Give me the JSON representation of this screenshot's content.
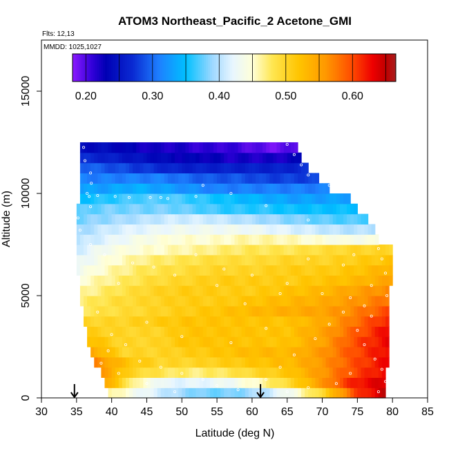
{
  "chart_data": {
    "type": "heatmap",
    "title": "ATOM3 Northeast_Pacific_2 Acetone_GMI",
    "flights_label": "Flts: 12,13",
    "dates_label": "MMDD: 1025,1027",
    "xlabel": "Latitude (deg N)",
    "ylabel": "Altitude (m)",
    "xlim": [
      30,
      85
    ],
    "ylim": [
      0,
      17500
    ],
    "x_ticks": [
      "30",
      "35",
      "40",
      "45",
      "50",
      "55",
      "60",
      "65",
      "70",
      "75",
      "80",
      "85"
    ],
    "y_ticks": [
      "0",
      "5000",
      "10000",
      "15000"
    ],
    "colorbar": {
      "range": [
        0.18,
        0.665
      ],
      "tick_values": [
        0.2,
        0.3,
        0.4,
        0.5,
        0.6
      ],
      "tick_labels": [
        "0.20",
        "0.30",
        "0.40",
        "0.50",
        "0.60"
      ],
      "boundaries": [
        0.18,
        0.2,
        0.25,
        0.3,
        0.35,
        0.4,
        0.45,
        0.5,
        0.55,
        0.6,
        0.65,
        0.665
      ],
      "color_stops": [
        {
          "v": 0.18,
          "c": "#8c1aff"
        },
        {
          "v": 0.21,
          "c": "#3000d8"
        },
        {
          "v": 0.23,
          "c": "#0000b4"
        },
        {
          "v": 0.27,
          "c": "#0a2ad2"
        },
        {
          "v": 0.31,
          "c": "#1e80ff"
        },
        {
          "v": 0.35,
          "c": "#00c0ff"
        },
        {
          "v": 0.39,
          "c": "#9ed8ff"
        },
        {
          "v": 0.42,
          "c": "#e8f6ff"
        },
        {
          "v": 0.45,
          "c": "#ffffd8"
        },
        {
          "v": 0.48,
          "c": "#ffe650"
        },
        {
          "v": 0.52,
          "c": "#ffc400"
        },
        {
          "v": 0.56,
          "c": "#ff9800"
        },
        {
          "v": 0.6,
          "c": "#ff4a00"
        },
        {
          "v": 0.63,
          "c": "#ee0000"
        },
        {
          "v": 0.65,
          "c": "#c00000"
        },
        {
          "v": 0.665,
          "c": "#a81e1e"
        }
      ]
    },
    "rows": [
      {
        "alt": 250,
        "x0": 39.5,
        "x1": 79.0,
        "edge": [
          0.47,
          0.43,
          0.4,
          0.38,
          0.38,
          0.4,
          0.44,
          0.5,
          0.6,
          0.65
        ]
      },
      {
        "alt": 750,
        "x0": 39.0,
        "x1": 79.0,
        "edge": [
          0.55,
          0.46,
          0.42,
          0.42,
          0.43,
          0.46,
          0.5,
          0.56,
          0.62,
          0.64
        ]
      },
      {
        "alt": 1250,
        "x0": 38.5,
        "x1": 79.0,
        "edge": [
          0.56,
          0.5,
          0.48,
          0.47,
          0.48,
          0.5,
          0.52,
          0.56,
          0.6,
          0.63
        ]
      },
      {
        "alt": 1750,
        "x0": 37.5,
        "x1": 79.5,
        "edge": [
          0.57,
          0.52,
          0.5,
          0.5,
          0.51,
          0.52,
          0.53,
          0.56,
          0.6,
          0.63
        ]
      },
      {
        "alt": 2250,
        "x0": 37.0,
        "x1": 79.5,
        "edge": [
          0.55,
          0.5,
          0.5,
          0.51,
          0.52,
          0.53,
          0.53,
          0.56,
          0.6,
          0.63
        ]
      },
      {
        "alt": 2750,
        "x0": 36.5,
        "x1": 79.5,
        "edge": [
          0.53,
          0.5,
          0.5,
          0.52,
          0.52,
          0.52,
          0.52,
          0.55,
          0.6,
          0.63
        ]
      },
      {
        "alt": 3250,
        "x0": 36.5,
        "x1": 79.5,
        "edge": [
          0.51,
          0.5,
          0.5,
          0.52,
          0.52,
          0.52,
          0.52,
          0.55,
          0.59,
          0.63
        ]
      },
      {
        "alt": 3750,
        "x0": 36.0,
        "x1": 79.5,
        "edge": [
          0.5,
          0.5,
          0.51,
          0.52,
          0.52,
          0.52,
          0.52,
          0.54,
          0.58,
          0.62
        ]
      },
      {
        "alt": 4250,
        "x0": 36.0,
        "x1": 79.5,
        "edge": [
          0.48,
          0.49,
          0.5,
          0.51,
          0.52,
          0.53,
          0.54,
          0.55,
          0.57,
          0.6
        ]
      },
      {
        "alt": 4750,
        "x0": 35.5,
        "x1": 79.5,
        "edge": [
          0.47,
          0.49,
          0.5,
          0.51,
          0.51,
          0.52,
          0.53,
          0.54,
          0.56,
          0.58
        ]
      },
      {
        "alt": 5250,
        "x0": 35.5,
        "x1": 79.5,
        "edge": [
          0.46,
          0.48,
          0.5,
          0.51,
          0.51,
          0.51,
          0.52,
          0.53,
          0.55,
          0.57
        ]
      },
      {
        "alt": 5750,
        "x0": 35.5,
        "x1": 80.0,
        "edge": [
          0.45,
          0.47,
          0.49,
          0.5,
          0.51,
          0.51,
          0.51,
          0.52,
          0.53,
          0.55
        ]
      },
      {
        "alt": 6250,
        "x0": 35.0,
        "x1": 80.0,
        "edge": [
          0.43,
          0.46,
          0.48,
          0.49,
          0.5,
          0.5,
          0.51,
          0.51,
          0.52,
          0.54
        ]
      },
      {
        "alt": 6750,
        "x0": 35.0,
        "x1": 80.0,
        "edge": [
          0.42,
          0.45,
          0.47,
          0.48,
          0.49,
          0.49,
          0.5,
          0.5,
          0.51,
          0.52
        ]
      },
      {
        "alt": 7250,
        "x0": 35.0,
        "x1": 80.0,
        "edge": [
          0.41,
          0.44,
          0.45,
          0.46,
          0.47,
          0.48,
          0.48,
          0.49,
          0.5,
          0.5
        ]
      },
      {
        "alt": 7750,
        "x0": 35.0,
        "x1": 78.0,
        "edge": [
          0.4,
          0.42,
          0.44,
          0.45,
          0.45,
          0.46,
          0.46,
          0.45,
          0.44,
          0.44
        ]
      },
      {
        "alt": 8250,
        "x0": 35.0,
        "x1": 77.5,
        "edge": [
          0.39,
          0.41,
          0.42,
          0.43,
          0.43,
          0.43,
          0.42,
          0.41,
          0.4,
          0.4
        ]
      },
      {
        "alt": 8750,
        "x0": 35.0,
        "x1": 76.5,
        "edge": [
          0.38,
          0.39,
          0.4,
          0.41,
          0.41,
          0.4,
          0.39,
          0.38,
          0.37,
          0.37
        ]
      },
      {
        "alt": 9250,
        "x0": 35.0,
        "x1": 75.0,
        "edge": [
          0.37,
          0.38,
          0.38,
          0.38,
          0.37,
          0.36,
          0.36,
          0.35,
          0.35,
          0.35
        ]
      },
      {
        "alt": 9750,
        "x0": 35.5,
        "x1": 74.0,
        "edge": [
          0.35,
          0.36,
          0.37,
          0.37,
          0.36,
          0.35,
          0.34,
          0.33,
          0.33,
          0.33
        ]
      },
      {
        "alt": 10250,
        "x0": 35.5,
        "x1": 71.0,
        "edge": [
          0.33,
          0.33,
          0.34,
          0.33,
          0.32,
          0.31,
          0.31,
          0.31,
          0.31,
          0.31
        ]
      },
      {
        "alt": 10750,
        "x0": 35.5,
        "x1": 69.5,
        "edge": [
          0.31,
          0.31,
          0.31,
          0.31,
          0.3,
          0.29,
          0.29,
          0.28,
          0.28,
          0.28
        ]
      },
      {
        "alt": 11250,
        "x0": 35.5,
        "x1": 68.0,
        "edge": [
          0.3,
          0.29,
          0.28,
          0.27,
          0.26,
          0.26,
          0.26,
          0.26,
          0.26,
          0.27
        ]
      },
      {
        "alt": 11750,
        "x0": 35.5,
        "x1": 67.0,
        "edge": [
          0.27,
          0.26,
          0.25,
          0.24,
          0.23,
          0.23,
          0.22,
          0.22,
          0.22,
          0.23
        ]
      },
      {
        "alt": 12250,
        "x0": 35.5,
        "x1": 66.5,
        "edge": [
          0.24,
          0.24,
          0.23,
          0.22,
          0.22,
          0.21,
          0.21,
          0.2,
          0.19,
          0.2
        ]
      }
    ],
    "arrow_markers_lat": [
      34.7,
      61.2
    ],
    "observation_points": [
      [
        36.0,
        12250
      ],
      [
        36.2,
        11600
      ],
      [
        37.0,
        11000
      ],
      [
        37.1,
        10500
      ],
      [
        36.5,
        10000
      ],
      [
        36.8,
        9850
      ],
      [
        38.0,
        9900
      ],
      [
        40.5,
        9850
      ],
      [
        42.5,
        9800
      ],
      [
        45.5,
        9800
      ],
      [
        47.0,
        9800
      ],
      [
        48.0,
        9750
      ],
      [
        52.0,
        9850
      ],
      [
        37.0,
        9350
      ],
      [
        35.2,
        8800
      ],
      [
        35.5,
        8200
      ],
      [
        37.0,
        7500
      ],
      [
        39.0,
        7000
      ],
      [
        43.0,
        6600
      ],
      [
        46.0,
        6400
      ],
      [
        52.0,
        7000
      ],
      [
        56.0,
        6300
      ],
      [
        60.0,
        6000
      ],
      [
        65.0,
        5600
      ],
      [
        70.0,
        5100
      ],
      [
        74.0,
        4900
      ],
      [
        77.0,
        5500
      ],
      [
        79.0,
        6100
      ],
      [
        78.5,
        6800
      ],
      [
        79.2,
        5000
      ],
      [
        65.0,
        12400
      ],
      [
        66.0,
        11900
      ],
      [
        67.0,
        11400
      ],
      [
        68.0,
        10900
      ],
      [
        71.0,
        10400
      ],
      [
        53.0,
        10400
      ],
      [
        57.0,
        10000
      ],
      [
        62.0,
        9400
      ],
      [
        68.0,
        8700
      ],
      [
        78.0,
        7300
      ],
      [
        38.0,
        4200
      ],
      [
        40.0,
        3100
      ],
      [
        42.0,
        2600
      ],
      [
        44.0,
        1800
      ],
      [
        47.0,
        1500
      ],
      [
        50.0,
        1200
      ],
      [
        53.0,
        900
      ],
      [
        55.0,
        600
      ],
      [
        58.0,
        400
      ],
      [
        61.0,
        300
      ],
      [
        62.0,
        900
      ],
      [
        64.0,
        1500
      ],
      [
        66.0,
        2100
      ],
      [
        69.0,
        2900
      ],
      [
        71.0,
        3600
      ],
      [
        73.0,
        4200
      ],
      [
        75.0,
        3300
      ],
      [
        76.0,
        2600
      ],
      [
        77.5,
        1900
      ],
      [
        78.5,
        1400
      ],
      [
        79.0,
        800
      ],
      [
        78.0,
        300
      ],
      [
        74.0,
        1200
      ],
      [
        72.0,
        700
      ],
      [
        68.0,
        500
      ],
      [
        65.0,
        300
      ],
      [
        57.0,
        2700
      ],
      [
        50.0,
        3000
      ],
      [
        45.0,
        3700
      ],
      [
        59.0,
        4600
      ],
      [
        64.0,
        5100
      ],
      [
        55.0,
        5500
      ],
      [
        49.0,
        6000
      ],
      [
        41.0,
        5600
      ],
      [
        38.5,
        1700
      ],
      [
        39.5,
        2300
      ],
      [
        41.0,
        1200
      ],
      [
        45.0,
        700
      ],
      [
        49.0,
        300
      ],
      [
        76.0,
        4500
      ],
      [
        77.0,
        4000
      ],
      [
        62.0,
        3400
      ],
      [
        68.0,
        6800
      ],
      [
        73.0,
        6500
      ],
      [
        74.5,
        7000
      ]
    ]
  }
}
